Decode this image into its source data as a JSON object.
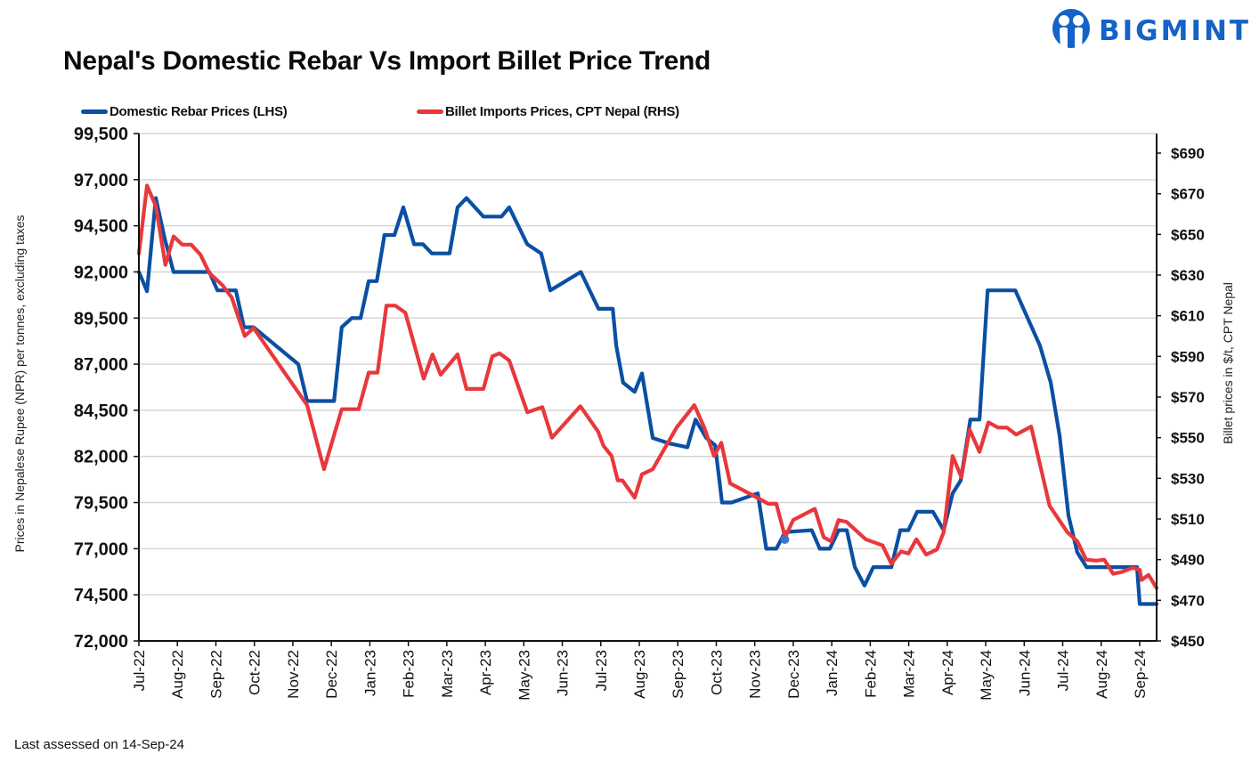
{
  "header": {
    "title": "Nepal's Domestic Rebar Vs Import Billet Price Trend",
    "brand": "BIGMINT",
    "brand_color": "#1463c6"
  },
  "footer": {
    "note": "Last assessed on 14-Sep-24"
  },
  "chart_data": {
    "type": "line",
    "title": "Nepal's Domestic Rebar Vs Import Billet Price Trend",
    "xlabel": "",
    "ylabel": "Prices in Nepalese Rupee (NPR) per tonnes, excluding taxes",
    "y2label": "Billet prices in $/t, CPT Nepal",
    "x_unit": "months since Jul-22",
    "x_categories": [
      "Jul-22",
      "Aug-22",
      "Sep-22",
      "Oct-22",
      "Nov-22",
      "Dec-22",
      "Jan-23",
      "Feb-23",
      "Mar-23",
      "Apr-23",
      "May-23",
      "Jun-23",
      "Jul-23",
      "Aug-23",
      "Sep-23",
      "Oct-23",
      "Nov-23",
      "Dec-23",
      "Jan-24",
      "Feb-24",
      "Mar-24",
      "Apr-24",
      "May-24",
      "Jun-24",
      "Jul-24",
      "Aug-24",
      "Sep-24"
    ],
    "xlim": [
      0,
      26.44
    ],
    "ylim": [
      72000,
      99500
    ],
    "yticks": [
      "72,000",
      "74,500",
      "77,000",
      "79,500",
      "82,000",
      "84,500",
      "87,000",
      "89,500",
      "92,000",
      "94,500",
      "97,000",
      "99,500"
    ],
    "y2lim": [
      450,
      690
    ],
    "y2ticks": [
      "$450",
      "$470",
      "$490",
      "$510",
      "$530",
      "$550",
      "$570",
      "$590",
      "$610",
      "$630",
      "$650",
      "$670",
      "$690"
    ],
    "grid": true,
    "legend_position": "top",
    "series": [
      {
        "name": "Domestic Rebar Prices (LHS)",
        "axis": "left",
        "color": "#0b4fa3",
        "points": [
          [
            0.0,
            92000
          ],
          [
            0.21,
            90950
          ],
          [
            0.44,
            96000
          ],
          [
            0.67,
            93800
          ],
          [
            0.9,
            92000
          ],
          [
            1.83,
            92000
          ],
          [
            2.04,
            91000
          ],
          [
            2.52,
            91000
          ],
          [
            2.73,
            89000
          ],
          [
            2.98,
            89000
          ],
          [
            4.14,
            87000
          ],
          [
            4.37,
            85000
          ],
          [
            5.07,
            85000
          ],
          [
            5.27,
            89000
          ],
          [
            5.53,
            89500
          ],
          [
            5.76,
            89500
          ],
          [
            5.97,
            91500
          ],
          [
            6.18,
            91500
          ],
          [
            6.38,
            94000
          ],
          [
            6.64,
            94000
          ],
          [
            6.87,
            95500
          ],
          [
            7.15,
            93500
          ],
          [
            7.38,
            93500
          ],
          [
            7.61,
            93000
          ],
          [
            8.07,
            93000
          ],
          [
            8.28,
            95500
          ],
          [
            8.51,
            96000
          ],
          [
            8.95,
            95000
          ],
          [
            9.42,
            95000
          ],
          [
            9.62,
            95500
          ],
          [
            10.09,
            93500
          ],
          [
            10.45,
            93000
          ],
          [
            10.69,
            91000
          ],
          [
            11.48,
            92000
          ],
          [
            11.94,
            90000
          ],
          [
            12.31,
            90000
          ],
          [
            12.4,
            88000
          ],
          [
            12.58,
            86000
          ],
          [
            12.88,
            85500
          ],
          [
            13.07,
            86500
          ],
          [
            13.35,
            83000
          ],
          [
            13.79,
            82700
          ],
          [
            14.25,
            82500
          ],
          [
            14.46,
            84000
          ],
          [
            14.74,
            83000
          ],
          [
            14.97,
            82600
          ],
          [
            15.15,
            79500
          ],
          [
            15.4,
            79500
          ],
          [
            16.08,
            80000
          ],
          [
            16.3,
            77000
          ],
          [
            16.56,
            77000
          ],
          [
            16.79,
            77900
          ],
          [
            17.48,
            78000
          ],
          [
            17.69,
            77000
          ],
          [
            17.95,
            77000
          ],
          [
            18.18,
            78000
          ],
          [
            18.39,
            78000
          ],
          [
            18.6,
            76000
          ],
          [
            18.85,
            75000
          ],
          [
            19.08,
            76000
          ],
          [
            19.55,
            76000
          ],
          [
            19.78,
            78000
          ],
          [
            19.99,
            78000
          ],
          [
            20.22,
            79000
          ],
          [
            20.63,
            79000
          ],
          [
            20.91,
            78000
          ],
          [
            21.14,
            80000
          ],
          [
            21.35,
            80700
          ],
          [
            21.6,
            84000
          ],
          [
            21.84,
            84000
          ],
          [
            22.05,
            91000
          ],
          [
            22.77,
            91000
          ],
          [
            23.41,
            88000
          ],
          [
            23.69,
            86000
          ],
          [
            23.92,
            83100
          ],
          [
            24.15,
            78800
          ],
          [
            24.38,
            76800
          ],
          [
            24.62,
            76000
          ],
          [
            25.93,
            76000
          ],
          [
            26.0,
            74000
          ],
          [
            26.44,
            74000
          ]
        ]
      },
      {
        "name": "Billet Imports Prices, CPT Nepal (RHS)",
        "axis": "right",
        "color": "#e8383b",
        "points": [
          [
            0.0,
            640.5
          ],
          [
            0.21,
            674
          ],
          [
            0.44,
            664
          ],
          [
            0.69,
            635
          ],
          [
            0.9,
            649
          ],
          [
            1.13,
            645
          ],
          [
            1.36,
            645
          ],
          [
            1.6,
            640
          ],
          [
            1.83,
            631
          ],
          [
            2.17,
            625
          ],
          [
            2.41,
            619
          ],
          [
            2.75,
            600
          ],
          [
            2.98,
            604
          ],
          [
            4.37,
            566
          ],
          [
            4.81,
            534.5
          ],
          [
            5.27,
            564
          ],
          [
            5.71,
            564
          ],
          [
            5.97,
            582
          ],
          [
            6.2,
            582
          ],
          [
            6.43,
            615
          ],
          [
            6.66,
            615
          ],
          [
            6.92,
            611.5
          ],
          [
            7.4,
            579
          ],
          [
            7.63,
            591
          ],
          [
            7.84,
            581
          ],
          [
            8.28,
            591
          ],
          [
            8.51,
            574
          ],
          [
            8.95,
            574
          ],
          [
            9.18,
            590
          ],
          [
            9.37,
            591.5
          ],
          [
            9.62,
            588
          ],
          [
            10.09,
            562.5
          ],
          [
            10.48,
            565
          ],
          [
            10.73,
            550
          ],
          [
            11.47,
            565.5
          ],
          [
            11.93,
            553
          ],
          [
            12.07,
            546
          ],
          [
            12.28,
            541
          ],
          [
            12.44,
            529
          ],
          [
            12.56,
            529
          ],
          [
            12.88,
            520.5
          ],
          [
            13.07,
            532
          ],
          [
            13.35,
            534.5
          ],
          [
            13.97,
            555
          ],
          [
            14.43,
            566
          ],
          [
            14.69,
            555
          ],
          [
            14.94,
            541
          ],
          [
            15.13,
            547.5
          ],
          [
            15.36,
            527.5
          ],
          [
            16.01,
            521
          ],
          [
            16.35,
            517.5
          ],
          [
            16.56,
            517.5
          ],
          [
            16.79,
            501
          ],
          [
            17.0,
            509.5
          ],
          [
            17.56,
            515
          ],
          [
            17.79,
            501
          ],
          [
            17.98,
            499
          ],
          [
            18.18,
            509.5
          ],
          [
            18.39,
            508.5
          ],
          [
            18.88,
            500
          ],
          [
            19.32,
            497
          ],
          [
            19.55,
            488
          ],
          [
            19.8,
            494
          ],
          [
            19.99,
            493
          ],
          [
            20.2,
            500
          ],
          [
            20.45,
            492.5
          ],
          [
            20.73,
            495
          ],
          [
            20.91,
            503.5
          ],
          [
            21.14,
            541
          ],
          [
            21.37,
            530.5
          ],
          [
            21.58,
            554
          ],
          [
            21.84,
            543
          ],
          [
            22.07,
            557.5
          ],
          [
            22.32,
            555
          ],
          [
            22.55,
            555
          ],
          [
            22.79,
            551.5
          ],
          [
            23.18,
            555.5
          ],
          [
            23.66,
            516.5
          ],
          [
            24.12,
            503.5
          ],
          [
            24.38,
            499
          ],
          [
            24.61,
            490
          ],
          [
            24.87,
            489.5
          ],
          [
            25.08,
            490
          ],
          [
            25.31,
            483
          ],
          [
            25.54,
            484
          ],
          [
            25.82,
            486
          ],
          [
            26.0,
            485
          ],
          [
            26.05,
            480
          ],
          [
            26.23,
            482.5
          ],
          [
            26.44,
            476
          ]
        ]
      }
    ],
    "annotations": [
      {
        "type": "marker",
        "series": "Domestic Rebar Prices (LHS)",
        "x": 16.78,
        "y": 77500,
        "color": "#4472c4"
      }
    ]
  }
}
